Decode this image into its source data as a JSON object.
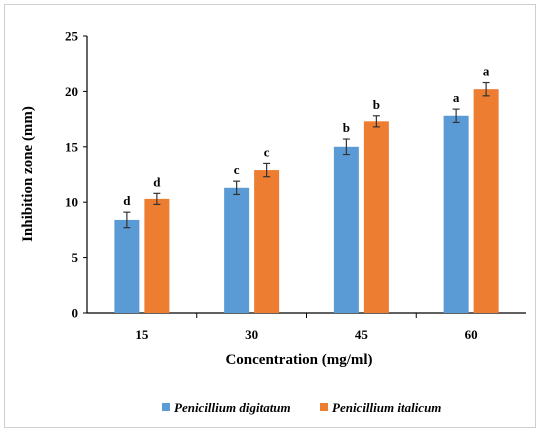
{
  "chart_data": {
    "type": "bar",
    "categories": [
      "15",
      "30",
      "45",
      "60"
    ],
    "series": [
      {
        "name": "Penicillium digitatum",
        "color": "#5b9bd5",
        "values": [
          8.4,
          11.3,
          15.0,
          17.8
        ],
        "errors": [
          0.7,
          0.6,
          0.7,
          0.6
        ],
        "labels": [
          "d",
          "c",
          "b",
          "a"
        ]
      },
      {
        "name": "Penicillium italicum",
        "color": "#ed7d31",
        "values": [
          10.3,
          12.9,
          17.3,
          20.2
        ],
        "errors": [
          0.5,
          0.6,
          0.5,
          0.6
        ],
        "labels": [
          "d",
          "c",
          "b",
          "a"
        ]
      }
    ],
    "xlabel": "Concentration (mg/ml)",
    "ylabel": "Inhibition  zone (mm)",
    "ylim": [
      0,
      25
    ],
    "yticks": [
      "0",
      "5",
      "10",
      "15",
      "20",
      "25"
    ],
    "grid": false,
    "legend_position": "bottom"
  }
}
